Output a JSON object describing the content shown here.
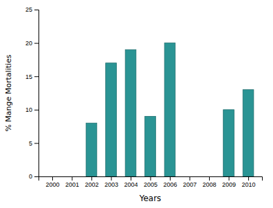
{
  "chart_data": {
    "type": "bar",
    "x": [
      2000,
      2001,
      2002,
      2003,
      2004,
      2005,
      2006,
      2007,
      2008,
      2009,
      2010
    ],
    "values": [
      0,
      0,
      8,
      17,
      19,
      9,
      20,
      0,
      0,
      10,
      13
    ],
    "color": "#2a9494",
    "xlabel": "Years",
    "ylabel": "% Mange Mortalities",
    "xlim": [
      1999.3,
      2010.7
    ],
    "xticks": [
      2000,
      2001,
      2002,
      2003,
      2004,
      2005,
      2006,
      2007,
      2008,
      2009,
      2010
    ],
    "ylim": [
      0,
      25
    ],
    "yticks": [
      0,
      5,
      10,
      15,
      20,
      25
    ],
    "grid": false
  }
}
